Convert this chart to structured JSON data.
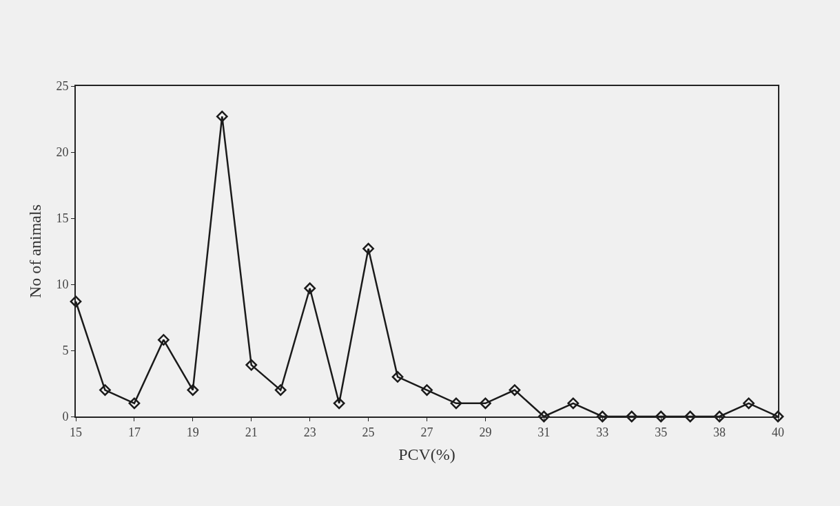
{
  "chart_data": {
    "type": "line",
    "xlabel": "PCV(%)",
    "ylabel": "No of animals",
    "categories": [
      "15",
      null,
      "17",
      null,
      "19",
      null,
      "21",
      null,
      "23",
      null,
      "25",
      null,
      "27",
      null,
      "29",
      null,
      "31",
      null,
      "33",
      null,
      "35",
      null,
      "38",
      null,
      "40"
    ],
    "values": [
      8.7,
      2,
      1,
      5.8,
      2,
      22.7,
      3.9,
      2,
      9.7,
      1,
      12.7,
      3,
      2,
      1,
      1,
      2,
      0,
      1,
      0,
      0,
      0,
      0,
      0,
      1,
      0
    ],
    "color": "#1a1a1a",
    "marker": "diamond",
    "line_style": "solid",
    "ylim": [
      0,
      25
    ],
    "yticks": [
      0,
      5,
      10,
      15,
      20,
      25
    ],
    "grid": false
  }
}
